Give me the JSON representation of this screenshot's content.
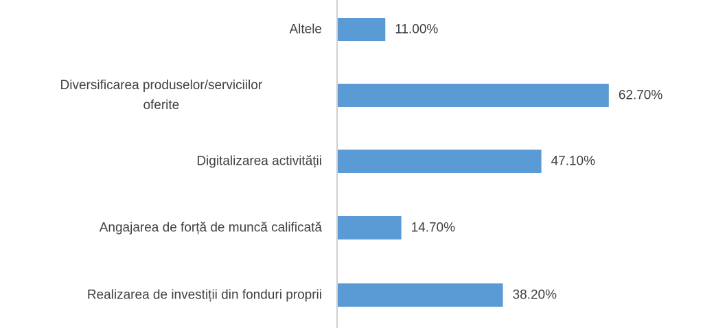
{
  "chart_data": {
    "type": "bar",
    "orientation": "horizontal",
    "categories": [
      "Altele",
      "Diversificarea produselor/serviciilor oferite",
      "Digitalizarea activității",
      "Angajarea de forță de muncă calificată",
      "Realizarea de investiții din fonduri proprii"
    ],
    "category_lines": [
      [
        "Altele"
      ],
      [
        "Diversificarea produselor/serviciilor",
        "oferite"
      ],
      [
        "Digitalizarea activității"
      ],
      [
        "Angajarea de forță de muncă calificată"
      ],
      [
        "Realizarea de investiții din fonduri proprii"
      ]
    ],
    "values": [
      11.0,
      62.7,
      47.1,
      14.7,
      38.2
    ],
    "value_labels": [
      "11.00%",
      "62.70%",
      "47.10%",
      "14.70%",
      "38.20%"
    ],
    "xlim": [
      0,
      64
    ],
    "grid": false,
    "legend": "none",
    "bar_color": "#5B9BD5",
    "axis_color": "#BFBFBF",
    "text_color": "#404040"
  }
}
